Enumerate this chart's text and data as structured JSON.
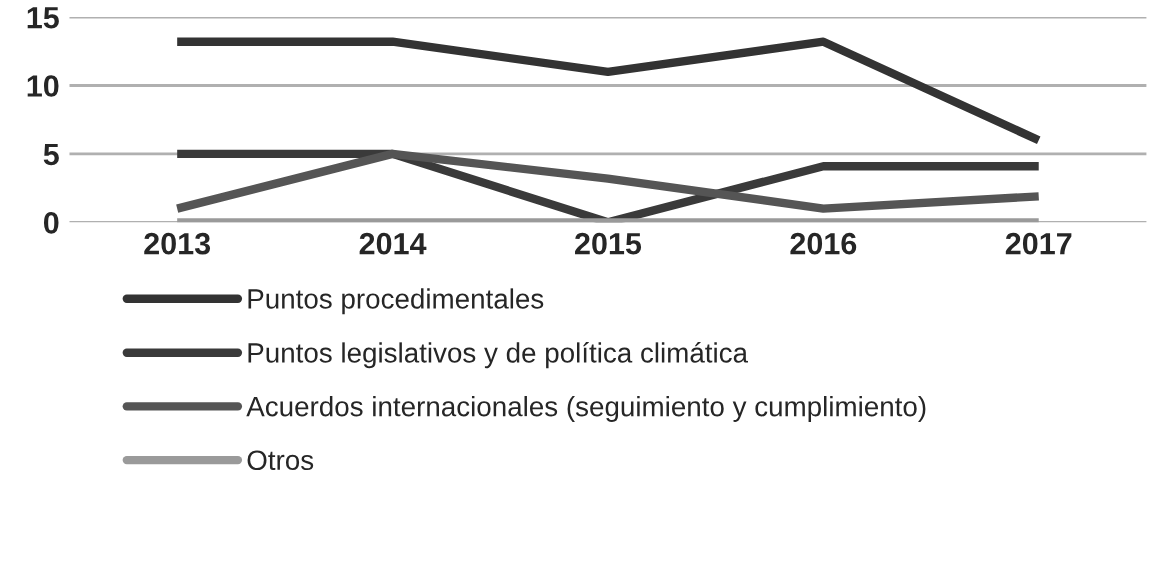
{
  "chart_data": {
    "type": "line",
    "categories": [
      "2013",
      "2014",
      "2015",
      "2016",
      "2017"
    ],
    "series": [
      {
        "name": "Puntos procedimentales",
        "color": "#333333",
        "values": [
          13.2,
          13.2,
          11,
          13.2,
          6
        ]
      },
      {
        "name": "Puntos legislativos y de política climática",
        "color": "#3a3a3a",
        "values": [
          5,
          5,
          0,
          4.1,
          4.1
        ]
      },
      {
        "name": "Acuerdos internacionales (seguimiento y cumplimiento)",
        "color": "#555555",
        "values": [
          1,
          5,
          3.2,
          1,
          1.9
        ]
      },
      {
        "name": "Otros",
        "color": "#9a9a9a",
        "values": [
          0,
          0,
          0,
          0,
          0
        ]
      }
    ],
    "ylim": [
      0,
      15
    ],
    "yticks": [
      0,
      5,
      10,
      15
    ],
    "grid": "y",
    "legend": "bottom",
    "marker": "none",
    "line_style": "solid"
  }
}
